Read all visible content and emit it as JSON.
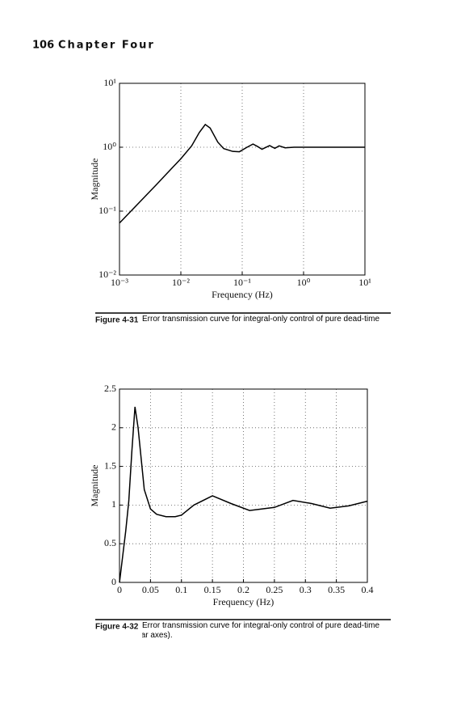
{
  "header": {
    "page_number": "106",
    "chapter": "Chapter Four"
  },
  "figures": [
    {
      "label": "Figure 4-31",
      "caption": "Error transmission curve for integral-only control of pure dead-time process."
    },
    {
      "label": "Figure 4-32",
      "caption": "Error transmission curve for integral-only control of pure dead-time process (linear axes)."
    }
  ],
  "chart_data": [
    {
      "type": "line",
      "xlabel": "Frequency (Hz)",
      "ylabel": "Magnitude",
      "log_x": true,
      "log_y": true,
      "grid": true,
      "color": "#000000",
      "x": [
        0.001,
        0.002,
        0.004,
        0.007,
        0.01,
        0.015,
        0.02,
        0.025,
        0.03,
        0.04,
        0.05,
        0.07,
        0.09,
        0.12,
        0.15,
        0.18,
        0.21,
        0.28,
        0.34,
        0.4,
        0.5,
        0.7,
        1,
        2,
        5,
        10
      ],
      "values": [
        0.065,
        0.13,
        0.26,
        0.46,
        0.66,
        1.05,
        1.7,
        2.27,
        2.0,
        1.2,
        0.95,
        0.86,
        0.85,
        1.0,
        1.12,
        1.02,
        0.93,
        1.06,
        0.96,
        1.05,
        0.98,
        1.0,
        1.0,
        1.0,
        1.0,
        1.0
      ],
      "xlim": [
        0.001,
        10
      ],
      "ylim": [
        0.01,
        10
      ],
      "xticks": [
        {
          "value": 0.001,
          "label": "10⁻³"
        },
        {
          "value": 0.01,
          "label": "10⁻²"
        },
        {
          "value": 0.1,
          "label": "10⁻¹"
        },
        {
          "value": 1,
          "label": "10⁰"
        },
        {
          "value": 10,
          "label": "10¹"
        }
      ],
      "yticks": [
        {
          "value": 0.01,
          "label": "10⁻²"
        },
        {
          "value": 0.1,
          "label": "10⁻¹"
        },
        {
          "value": 1,
          "label": "10⁰"
        },
        {
          "value": 10,
          "label": "10¹"
        }
      ]
    },
    {
      "type": "line",
      "xlabel": "Frequency (Hz)",
      "ylabel": "Magnitude",
      "log_x": false,
      "log_y": false,
      "grid": true,
      "color": "#000000",
      "x": [
        0,
        0.005,
        0.01,
        0.015,
        0.02,
        0.025,
        0.03,
        0.035,
        0.04,
        0.05,
        0.06,
        0.075,
        0.09,
        0.1,
        0.12,
        0.15,
        0.18,
        0.21,
        0.25,
        0.28,
        0.31,
        0.34,
        0.37,
        0.4
      ],
      "values": [
        0,
        0.33,
        0.66,
        1.05,
        1.7,
        2.27,
        2.0,
        1.6,
        1.2,
        0.95,
        0.88,
        0.85,
        0.85,
        0.87,
        1.0,
        1.12,
        1.02,
        0.93,
        0.97,
        1.06,
        1.02,
        0.96,
        0.99,
        1.05
      ],
      "xlim": [
        0,
        0.4
      ],
      "ylim": [
        0,
        2.5
      ],
      "xticks": [
        0,
        0.05,
        0.1,
        0.15,
        0.2,
        0.25,
        0.3,
        0.35,
        0.4
      ],
      "yticks": [
        0,
        0.5,
        1,
        1.5,
        2,
        2.5
      ]
    }
  ]
}
